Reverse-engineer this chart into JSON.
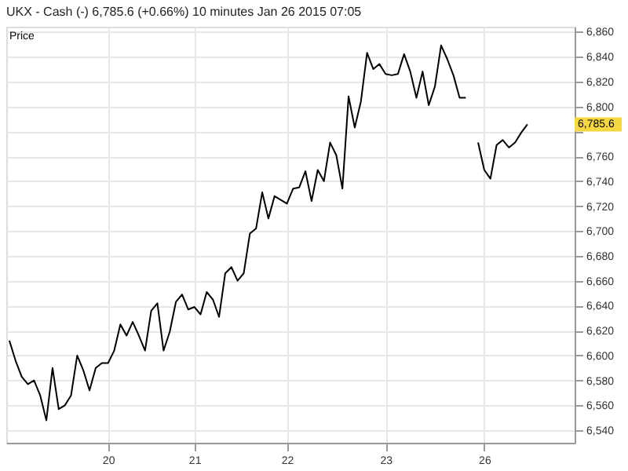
{
  "chart_data": {
    "type": "line",
    "title": "UKX - Cash (-)   6,785.6 (+0.66%)   10 minutes   Jan 26 2015 07:05",
    "annotations": [
      "Price",
      "6,785.6"
    ],
    "categories": [
      null,
      null,
      null,
      null,
      null,
      null,
      null,
      null,
      null,
      null,
      null,
      null,
      null,
      null,
      null,
      null,
      "20",
      null,
      null,
      null,
      null,
      null,
      null,
      null,
      null,
      null,
      null,
      null,
      null,
      null,
      "21",
      null,
      null,
      null,
      null,
      null,
      null,
      null,
      null,
      null,
      null,
      null,
      null,
      null,
      null,
      "22",
      null,
      null,
      null,
      null,
      null,
      null,
      null,
      null,
      null,
      null,
      null,
      null,
      null,
      null,
      null,
      "23",
      null,
      null,
      null,
      null,
      null,
      null,
      null,
      null,
      null,
      null,
      null,
      null,
      null,
      null,
      null,
      "26",
      null,
      null,
      null,
      null,
      null,
      null,
      null
    ],
    "values": [
      6612,
      6596,
      6583,
      6577,
      6580,
      6568,
      6548,
      6590,
      6557,
      6560,
      6568,
      6600,
      6588,
      6572,
      6590,
      6594,
      6594,
      6604,
      6625,
      6616,
      6627,
      6616,
      6604,
      6636,
      6642,
      6604,
      6619,
      6643,
      6649,
      6637,
      6639,
      6633,
      6651,
      6645,
      6631,
      6666,
      6671,
      6660,
      6666,
      6698,
      6702,
      6731,
      6710,
      6728,
      6725,
      6722,
      6734,
      6735,
      6748,
      6724,
      6749,
      6740,
      6771,
      6761,
      6734,
      6808,
      6783,
      6804,
      6843,
      6830,
      6834,
      6826,
      6825,
      6826,
      6842,
      6828,
      6807,
      6828,
      6801,
      6816,
      6849,
      6838,
      6825,
      6807,
      6807,
      null,
      6771,
      6749,
      6742,
      6769,
      6773,
      6767,
      6771,
      6779,
      6785.6
    ],
    "color": "#000000",
    "ylim": [
      6530,
      6864
    ],
    "yticks": [
      {
        "value": 6540,
        "label": "6,540"
      },
      {
        "value": 6560,
        "label": "6,560"
      },
      {
        "value": 6580,
        "label": "6,580"
      },
      {
        "value": 6600,
        "label": "6,600"
      },
      {
        "value": 6620,
        "label": "6,620"
      },
      {
        "value": 6640,
        "label": "6,640"
      },
      {
        "value": 6660,
        "label": "6,660"
      },
      {
        "value": 6680,
        "label": "6,680"
      },
      {
        "value": 6700,
        "label": "6,700"
      },
      {
        "value": 6720,
        "label": "6,720"
      },
      {
        "value": 6740,
        "label": "6,740"
      },
      {
        "value": 6760,
        "label": "6,760"
      },
      {
        "value": 6780,
        "label": null
      },
      {
        "value": 6800,
        "label": "6,800"
      },
      {
        "value": 6820,
        "label": "6,820"
      },
      {
        "value": 6840,
        "label": "6,840"
      },
      {
        "value": 6860,
        "label": "6,860"
      }
    ],
    "grid": true
  }
}
